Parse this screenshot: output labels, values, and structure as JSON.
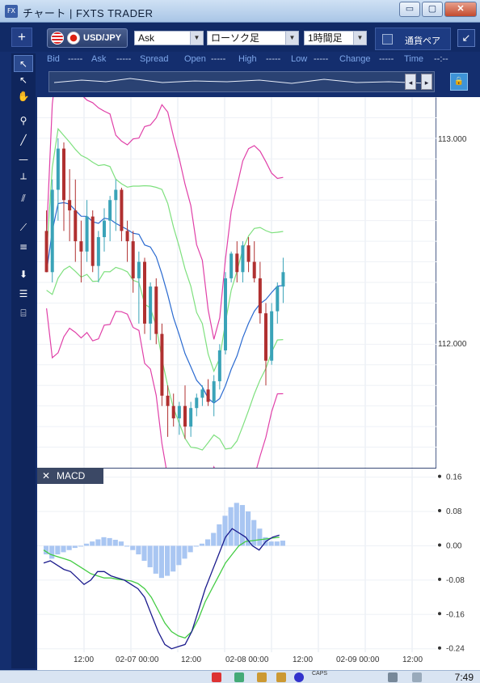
{
  "window": {
    "icon_text": "FX",
    "title": "チャート | FXTS TRADER",
    "controls": [
      "▭",
      "▢",
      "✕"
    ]
  },
  "toolbar": {
    "new_chart_label": "+",
    "symbol": "USD/JPY",
    "price_type": "Ask",
    "chart_type": "ローソク足",
    "timeframe": "1時間足",
    "currency_panel_label": "通貨ペア",
    "popout_icon": "↙"
  },
  "quote": {
    "bid_label": "Bid",
    "bid_value": "-----",
    "ask_label": "Ask",
    "ask_value": "-----",
    "spread_label": "Spread",
    "open_label": "Open",
    "open_value": "-----",
    "high_label": "High",
    "high_value": "-----",
    "low_label": "Low",
    "low_value": "-----",
    "change_label": "Change",
    "change_value": "-----",
    "time_label": "Time",
    "time_value": "--:--"
  },
  "overview": {
    "nav_left": "◂",
    "nav_right": "▸",
    "lock_icon": "🔒"
  },
  "left_tools": [
    {
      "icon": "pointer-icon",
      "glyph": "↖"
    },
    {
      "icon": "crosshair-pointer-icon",
      "glyph": "↖"
    },
    {
      "icon": "hand-icon",
      "glyph": "✋"
    },
    {
      "icon": "pin-icon",
      "glyph": "⚲"
    },
    {
      "icon": "trendline-icon",
      "glyph": "╱"
    },
    {
      "icon": "horizontal-line-icon",
      "glyph": "—"
    },
    {
      "icon": "vertical-line-icon",
      "glyph": "┴"
    },
    {
      "icon": "parallel-lines-icon",
      "glyph": "⫽"
    },
    {
      "icon": "fan-icon",
      "glyph": "⟋"
    },
    {
      "icon": "fibonacci-icon",
      "glyph": "≡"
    },
    {
      "icon": "download-icon",
      "glyph": "⬇"
    },
    {
      "icon": "list-icon",
      "glyph": "☰"
    },
    {
      "icon": "camera-icon",
      "glyph": "⌸"
    }
  ],
  "colors": {
    "up": "#3aa3b8",
    "down": "#b03030",
    "bb_outer": "#e040a8",
    "bb_inner": "#7ee07e",
    "mid": "#2a6ad0",
    "macd_line": "#1a1a8c",
    "signal_line": "#44cc44",
    "hist": "#a9c6f2"
  },
  "chart_data": [
    {
      "type": "candlestick",
      "title": "USD/JPY",
      "y_ticks": [
        "113.000",
        "112.000"
      ],
      "ylim": [
        111.4,
        113.2
      ],
      "x_ticks": [
        "12:00",
        "02-07 00:00",
        "12:00",
        "02-08 00:00",
        "12:00",
        "02-09 00:00",
        "12:00"
      ],
      "candles": [
        [
          112.55,
          112.65,
          112.35,
          112.35
        ],
        [
          112.35,
          112.8,
          112.3,
          112.75
        ],
        [
          112.75,
          113.0,
          112.6,
          112.95
        ],
        [
          112.95,
          112.98,
          112.55,
          112.7
        ],
        [
          112.7,
          112.85,
          112.5,
          112.65
        ],
        [
          112.65,
          112.8,
          112.4,
          112.5
        ],
        [
          112.5,
          112.6,
          112.3,
          112.45
        ],
        [
          112.45,
          112.7,
          112.4,
          112.62
        ],
        [
          112.62,
          112.65,
          112.35,
          112.38
        ],
        [
          112.38,
          112.55,
          112.3,
          112.52
        ],
        [
          112.52,
          112.66,
          112.45,
          112.6
        ],
        [
          112.6,
          112.72,
          112.5,
          112.7
        ],
        [
          112.7,
          112.8,
          112.55,
          112.75
        ],
        [
          112.75,
          112.76,
          112.5,
          112.55
        ],
        [
          112.55,
          112.6,
          112.4,
          112.5
        ],
        [
          112.5,
          112.55,
          112.25,
          112.32
        ],
        [
          112.32,
          112.45,
          112.1,
          112.4
        ],
        [
          112.4,
          112.42,
          112.05,
          112.1
        ],
        [
          112.1,
          112.3,
          112.02,
          112.28
        ],
        [
          112.28,
          112.32,
          112.0,
          112.05
        ],
        [
          112.05,
          112.1,
          111.7,
          111.75
        ],
        [
          111.75,
          111.8,
          111.55,
          111.7
        ],
        [
          111.7,
          111.76,
          111.6,
          111.64
        ],
        [
          111.64,
          111.72,
          111.56,
          111.7
        ],
        [
          111.7,
          111.8,
          111.54,
          111.6
        ],
        [
          111.6,
          111.72,
          111.55,
          111.69
        ],
        [
          111.69,
          111.76,
          111.65,
          111.74
        ],
        [
          111.74,
          111.8,
          111.7,
          111.78
        ],
        [
          111.78,
          111.83,
          111.7,
          111.72
        ],
        [
          111.72,
          111.85,
          111.65,
          111.82
        ],
        [
          111.82,
          112.0,
          111.78,
          111.97
        ],
        [
          111.97,
          112.35,
          111.95,
          112.32
        ],
        [
          112.32,
          112.45,
          112.3,
          112.44
        ],
        [
          112.44,
          112.5,
          112.3,
          112.35
        ],
        [
          112.35,
          112.5,
          112.3,
          112.48
        ],
        [
          112.48,
          112.52,
          112.35,
          112.4
        ],
        [
          112.4,
          112.5,
          112.3,
          112.32
        ],
        [
          112.32,
          112.4,
          112.1,
          112.15
        ],
        [
          112.15,
          112.2,
          111.8,
          111.92
        ],
        [
          111.92,
          112.2,
          111.9,
          112.16
        ],
        [
          112.16,
          112.3,
          112.1,
          112.28
        ],
        [
          112.28,
          112.42,
          112.2,
          112.35
        ]
      ]
    },
    {
      "type": "histogram+line",
      "title": "MACD",
      "y_ticks": [
        "0.16",
        "0.08",
        "0.00",
        "-0.08",
        "-0.16",
        "-0.24"
      ],
      "ylim": [
        -0.25,
        0.18
      ],
      "histogram": [
        -0.02,
        -0.03,
        -0.02,
        -0.015,
        -0.01,
        -0.005,
        0,
        0.005,
        0.01,
        0.015,
        0.02,
        0.018,
        0.014,
        0.01,
        0,
        -0.01,
        -0.02,
        -0.035,
        -0.05,
        -0.065,
        -0.075,
        -0.07,
        -0.06,
        -0.045,
        -0.03,
        -0.015,
        0,
        0.005,
        0.015,
        0.03,
        0.05,
        0.07,
        0.09,
        0.1,
        0.095,
        0.08,
        0.06,
        0.04,
        0.02,
        0.01,
        0.01,
        0.012
      ],
      "macd": [
        -0.04,
        -0.035,
        -0.045,
        -0.055,
        -0.06,
        -0.075,
        -0.09,
        -0.08,
        -0.06,
        -0.06,
        -0.07,
        -0.075,
        -0.08,
        -0.09,
        -0.1,
        -0.12,
        -0.16,
        -0.2,
        -0.23,
        -0.24,
        -0.235,
        -0.23,
        -0.2,
        -0.15,
        -0.1,
        -0.06,
        -0.02,
        0.02,
        0.04,
        0.03,
        0.02,
        0.0,
        -0.01,
        0.01,
        0.02,
        0.025
      ],
      "signal": [
        -0.01,
        -0.02,
        -0.025,
        -0.03,
        -0.035,
        -0.045,
        -0.055,
        -0.065,
        -0.07,
        -0.075,
        -0.075,
        -0.078,
        -0.08,
        -0.082,
        -0.088,
        -0.1,
        -0.12,
        -0.15,
        -0.18,
        -0.2,
        -0.21,
        -0.215,
        -0.2,
        -0.17,
        -0.13,
        -0.1,
        -0.07,
        -0.04,
        -0.02,
        0.0,
        0.01,
        0.012,
        0.014,
        0.016,
        0.018,
        0.02
      ]
    }
  ],
  "taskbar": {
    "caps_label": "CAPS",
    "clock": "7:49"
  }
}
